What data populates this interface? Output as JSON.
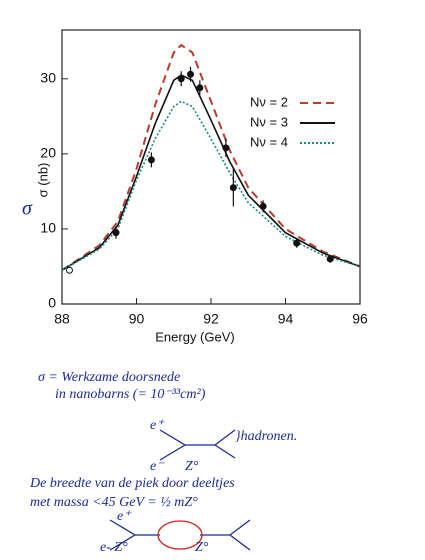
{
  "chart_data": {
    "type": "line",
    "xlabel": "Energy (GeV)",
    "ylabel": "σ (nb)",
    "xlim": [
      88,
      96
    ],
    "xticks": [
      88,
      90,
      92,
      94,
      96
    ],
    "ylim": [
      0,
      36.5
    ],
    "yticks": [
      0,
      10,
      20,
      30
    ],
    "x": [
      88,
      89,
      89.5,
      90,
      90.5,
      91,
      91.2,
      91.5,
      92,
      92.5,
      93,
      94,
      95,
      96
    ],
    "series": [
      {
        "name": "Nν = 2",
        "color": "#c0392b",
        "dash": "8 5",
        "values": [
          4.5,
          7.8,
          11,
          18,
          26.5,
          33.5,
          34.5,
          33.5,
          27,
          20.5,
          15.5,
          10,
          7,
          5
        ]
      },
      {
        "name": "Nν = 3",
        "color": "#111111",
        "dash": "none",
        "values": [
          4.5,
          7.5,
          10.5,
          17,
          24,
          29.8,
          30.5,
          29.8,
          24.5,
          19,
          14.5,
          9.5,
          6.8,
          5
        ]
      },
      {
        "name": "Nν = 4",
        "color": "#138a8a",
        "dash": "2 2",
        "values": [
          4.5,
          7.3,
          10,
          16.5,
          22,
          26.3,
          27,
          26.3,
          22,
          17.5,
          13.5,
          9,
          6.5,
          5
        ]
      }
    ],
    "points": {
      "x": [
        88.2,
        89.45,
        90.4,
        91.2,
        91.45,
        91.7,
        92.4,
        92.6,
        93.4,
        94.3,
        95.2
      ],
      "values": [
        4.5,
        9.5,
        19.2,
        30,
        30.6,
        28.8,
        20.8,
        15.5,
        13,
        8.1,
        6
      ],
      "errors": [
        0,
        0.8,
        1,
        1,
        1,
        1,
        1.2,
        2.5,
        0.8,
        0.6,
        0.5
      ]
    }
  },
  "notes": [
    "σ",
    "σ = Werkzame doorsnede",
    "in nanobarns (= 10⁻³³cm²)",
    "e⁺",
    "}hadronen.",
    "e⁻",
    "Z°",
    "De breedte van de piek door deeltjes",
    "met massa  <45 GeV = ½ mZ°",
    "e⁺",
    "e- Z°",
    "Z°"
  ]
}
